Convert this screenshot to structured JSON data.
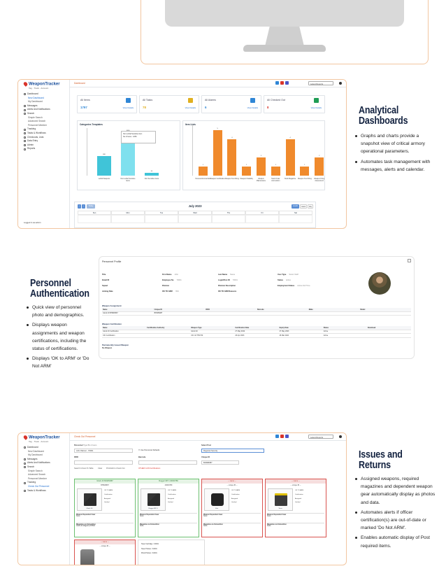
{
  "sections": {
    "analytical": {
      "title_line1": "Analytical",
      "title_line2": "Dashboards",
      "bullets": [
        "Graphs and charts provide a snapshot view of critical armory operational parameters.",
        "Automates task management with messages, alerts and calendar."
      ]
    },
    "personnel": {
      "title_line1": "Personnel",
      "title_line2": "Authentication",
      "bullets": [
        "Quick view of personnel photo and demographics.",
        "Displays weapon assignments and weapon certifications, including the status of certifications.",
        "Displays 'OK to ARM' or 'Do Not ARM'"
      ]
    },
    "issues": {
      "title_line1": "Issues and",
      "title_line2": "Returns",
      "bullets": [
        "Assigned weapons, required magazines and dependent weapon gear automatically display as photos and data.",
        "Automates alerts if officer certification(s) are out-of-date or marked 'Do Not ARM'.",
        "Enables automatic display of Post required items."
      ]
    }
  },
  "app": {
    "logo": "WeaponTracker",
    "logo_tag": "Tag · Track · Account",
    "language": "Latest Reports",
    "dashboard_breadcrumb": "Dashboard",
    "issue_breadcrumb": "Check Out Personnel",
    "nav": [
      "Dashboard",
      "New Dashboard",
      "My Dashboard",
      "Messages",
      "Alerts And Notifications",
      "Search",
      "Simple Search",
      "Advanced Search",
      "Personnel Member",
      "Tracking",
      "Tasks & Workflows",
      "Checkouts, Lists",
      "Data Entry",
      "Admin",
      "Reports"
    ],
    "footer": "Logged in as admin"
  },
  "dashboard": {
    "cards": [
      {
        "title": "All Items",
        "value": "1797",
        "link": "View Details",
        "color": "#2f86d6"
      },
      {
        "title": "All Tasks",
        "value": "78",
        "link": "View Details",
        "color": "#e0b020"
      },
      {
        "title": "All Alarms",
        "value": "6",
        "link": "View Details",
        "color": "#2f86d6"
      },
      {
        "title": "All Checked Out",
        "value": "8",
        "link": "View Details",
        "color": "#1f9d55"
      }
    ],
    "tooltip_title": "Non Lethal Sensitive Item",
    "tooltip_value": "No of Items : 1050",
    "calendar": {
      "month": "July 2023",
      "today": "Today",
      "views": [
        "month",
        "week",
        "day"
      ],
      "days": [
        "Sun",
        "Mon",
        "Tue",
        "Wed",
        "Thu",
        "Fri",
        "Sat"
      ]
    }
  },
  "chart_data": [
    {
      "type": "bar",
      "title": "Categories Templates",
      "categories": [
        "Lethal Weapons",
        "Non Lethal Sensitive Items",
        "Non Sensitive Items"
      ],
      "values": [
        480,
        1050,
        60
      ],
      "color": "#40c4d8"
    },
    {
      "type": "bar",
      "title": "Item Lists",
      "categories": [
        "Personal Ammunition",
        "Weapon Certification",
        "Weapon Test Firing",
        "Weapon Disability",
        "Weapon Maintenance",
        "Stock Order Ammunition",
        "Stock Magazine",
        "Weapon Test Firing",
        "Weapon Firing Assessment"
      ],
      "values": [
        1,
        5,
        4,
        1,
        2,
        1,
        4,
        1,
        2
      ],
      "color": "#f08a2c"
    }
  ],
  "personnel": {
    "title": "Personnel Profile",
    "fields": [
      {
        "k": "Title",
        "v": ""
      },
      {
        "k": "First Name",
        "v": "John"
      },
      {
        "k": "Last Name",
        "v": "Name"
      },
      {
        "k": "User Type",
        "v": "Sworn Staff"
      },
      {
        "k": "Email ID",
        "v": ""
      },
      {
        "k": "Employee No",
        "v": "70001"
      },
      {
        "k": "Login/Post ID",
        "v": "70001"
      },
      {
        "k": "Status",
        "v": "Active"
      },
      {
        "k": "Squad",
        "v": ""
      },
      {
        "k": "Division",
        "v": ""
      },
      {
        "k": "Division Description",
        "v": ""
      },
      {
        "k": "Employment Status",
        "v": "Active Full Time"
      },
      {
        "k": "Joining Date",
        "v": ""
      },
      {
        "k": "OK TO ARM",
        "v": "YES"
      },
      {
        "k": "OK TO ARM Reasons",
        "v": ""
      }
    ],
    "assign_heading": "Weapon Assignment",
    "assign_cols": [
      "Name",
      "Unique ID",
      "RFID",
      "Barcode",
      "Make",
      "Model"
    ],
    "assign_row": [
      "Glock 40 BHWM987",
      "BHWM987",
      "",
      "",
      "",
      ""
    ],
    "cert_heading": "Weapon Certification",
    "cert_cols": [
      "Name",
      "Certification Authority",
      "Weapon Type",
      "Certification Date",
      "Expiry Date",
      "Status",
      "Download"
    ],
    "cert_rows": [
      [
        "Glock 40 Certification",
        "",
        "Glock 40",
        "27 May 2022",
        "27 May 2023",
        "Active",
        ""
      ],
      [
        "CIC Certification",
        "",
        "CIC 44 THC700",
        "26 Apr 2023",
        "26 Mar 2024",
        "Active",
        ""
      ]
    ],
    "issued_heading": "Permanently Issued Weapon",
    "no_weapon": "No Weapon"
  },
  "issues": {
    "personnel_label": "Personnel",
    "type_label": "Type Bin 2 Liens",
    "personnel_value": "John Warner - 70001",
    "checkbox_label": "Use Personnel Defaults",
    "post_label": "Select Post",
    "post_value": "Regional Security",
    "rfid_label": "RFID",
    "barcode_label": "Barcode",
    "unique_label": "Unique ID",
    "unique_value": "BHWM987",
    "btn_search": "Search & Scan To Table",
    "btn_clear": "Clear",
    "btn_print": "Print/Add to Check Out",
    "btn_certs": "OTHER GUN Certifications",
    "weapons": [
      {
        "head": "Glock 40 BHWM987",
        "sub": "BHWM987",
        "label": "Glock 40",
        "green": true
      },
      {
        "head": "Rugger MP 4 40000789",
        "sub": "40000789",
        "label": "Rugger MP 4",
        "green": true
      },
      {
        "head": "-- name --",
        "sub": "-- unique ID --",
        "label": "Vest",
        "green": false
      },
      {
        "head": "-- name --",
        "sub": "-- unique ID --",
        "label": "Taser",
        "green": false
      }
    ],
    "fields": [
      "OK TO ARM",
      "Certification",
      "Assigned",
      "Verified"
    ],
    "sec_dependent": "Weapon Dependent Gear",
    "sec_magazine": "Magazines & Ammunition",
    "mag_value": "Glock 40 Magazine BHW4",
    "none_label": "None",
    "lower_items": [
      "Taser Cartridge / 10001",
      "Taser Holster / 10001",
      "Pistol Holster / 10001"
    ]
  }
}
